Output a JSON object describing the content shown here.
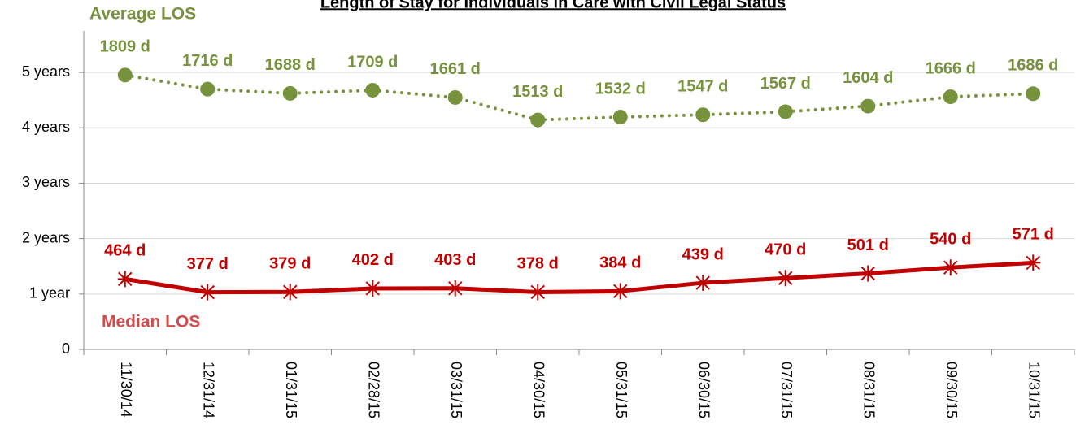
{
  "chart_data": {
    "type": "line",
    "title": "Length of Stay for Individuals in Care with Civil Legal Status",
    "categories": [
      "11/30/14",
      "12/31/14",
      "01/31/15",
      "02/28/15",
      "03/31/15",
      "04/30/15",
      "05/31/15",
      "06/30/15",
      "07/31/15",
      "08/31/15",
      "09/30/15",
      "10/31/15"
    ],
    "series": [
      {
        "name": "Average LOS",
        "color": "#76923c",
        "dash": "dotted",
        "marker": "circle",
        "values": [
          1809,
          1716,
          1688,
          1709,
          1661,
          1513,
          1532,
          1547,
          1567,
          1604,
          1666,
          1686
        ],
        "value_labels": [
          "1809 d",
          "1716 d",
          "1688 d",
          "1709 d",
          "1661 d",
          "1513 d",
          "1532 d",
          "1547 d",
          "1567 d",
          "1604 d",
          "1666 d",
          "1686 d"
        ]
      },
      {
        "name": "Median LOS",
        "color": "#c00000",
        "dash": "solid",
        "marker": "asterisk",
        "values": [
          464,
          377,
          379,
          402,
          403,
          378,
          384,
          439,
          470,
          501,
          540,
          571
        ],
        "value_labels": [
          "464 d",
          "377 d",
          "379 d",
          "402 d",
          "403 d",
          "378 d",
          "384 d",
          "439 d",
          "470 d",
          "501 d",
          "540 d",
          "571 d"
        ]
      }
    ],
    "ylim": [
      0,
      2100
    ],
    "yticks": [
      0,
      {
        "value": 365.25,
        "label": "1 year"
      },
      {
        "value": 730.5,
        "label": "2 years"
      },
      {
        "value": 1095.75,
        "label": "3 years"
      },
      {
        "value": 1461,
        "label": "4 years"
      },
      {
        "value": 1826.25,
        "label": "5 years"
      }
    ],
    "grid": true
  }
}
